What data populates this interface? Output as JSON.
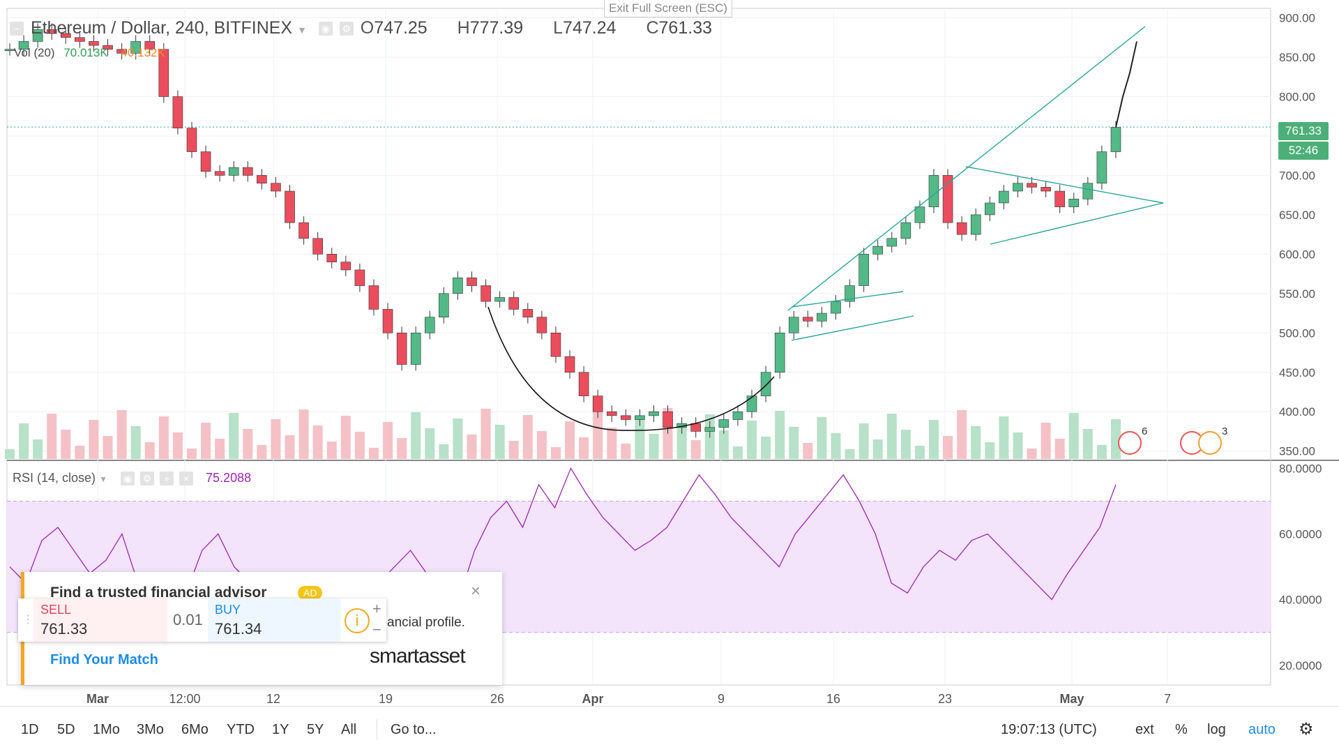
{
  "header": {
    "symbol": "Ethereum / Dollar, 240, BITFINEX",
    "open_label": "O",
    "open": "747.25",
    "high_label": "H",
    "high": "777.39",
    "low_label": "L",
    "low": "747.24",
    "close_label": "C",
    "close": "761.33",
    "exit_fullscreen": "Exit Full Screen (ESC)"
  },
  "volume_legend": {
    "label": "Vol (20)",
    "value1": "70.013K",
    "value2": "40.132K"
  },
  "rsi_legend": {
    "label": "RSI (14, close)",
    "value": "75.2088"
  },
  "price_tags": {
    "last_price": "761.33",
    "countdown": "52:46"
  },
  "colors": {
    "up": "#53b987",
    "down": "#eb4d5c",
    "rsi": "#9c27b0",
    "rsi_band": "#f3e3fb",
    "trendline": "#26a69a",
    "volume_up": "#b7e1c8",
    "volume_down": "#f4c1c7",
    "vol_ma": "#f7a35c"
  },
  "events": [
    {
      "count": "6"
    },
    {
      "count": "3"
    }
  ],
  "bottom_bar": {
    "timeframes": [
      "1D",
      "5D",
      "1Mo",
      "3Mo",
      "6Mo",
      "YTD",
      "1Y",
      "5Y",
      "All"
    ],
    "goto": "Go to...",
    "clock": "19:07:13 (UTC)",
    "ext": "ext",
    "percent": "%",
    "log": "log",
    "auto": "auto",
    "settings_icon": "gear-icon"
  },
  "ad": {
    "title": "Find a trusted financial advisor",
    "badge": "AD",
    "subtitle": "ancial profile.",
    "cta": "Find Your Match",
    "brand": "smartasset"
  },
  "trade_widget": {
    "sell_label": "SELL",
    "sell_price": "761.33",
    "lot": "0.01",
    "buy_label": "BUY",
    "buy_price": "761.34"
  },
  "chart_data": [
    {
      "type": "candlestick",
      "title": "Ethereum / Dollar, 240, BITFINEX",
      "x_ticks": [
        "Mar",
        "12:00",
        "12",
        "19",
        "26",
        "Apr",
        "9",
        "16",
        "23",
        "May",
        "7"
      ],
      "y_ticks": [
        "900.00",
        "850.00",
        "800.00",
        "750.00",
        "700.00",
        "650.00",
        "600.00",
        "550.00",
        "500.00",
        "450.00",
        "400.00",
        "350.00"
      ],
      "ylim": [
        340,
        912
      ],
      "close_path": [
        860,
        870,
        885,
        880,
        875,
        870,
        865,
        860,
        855,
        870,
        860,
        800,
        760,
        730,
        705,
        700,
        710,
        700,
        690,
        680,
        640,
        620,
        600,
        590,
        580,
        560,
        530,
        500,
        460,
        500,
        520,
        550,
        570,
        560,
        540,
        545,
        530,
        520,
        500,
        470,
        450,
        420,
        400,
        395,
        390,
        395,
        400,
        380,
        385,
        375,
        380,
        390,
        400,
        420,
        450,
        500,
        520,
        515,
        525,
        540,
        560,
        600,
        610,
        620,
        640,
        660,
        700,
        640,
        625,
        650,
        665,
        680,
        690,
        685,
        680,
        660,
        670,
        690,
        730,
        761
      ],
      "projection": [
        761,
        800,
        830,
        870
      ],
      "last": 761.33
    },
    {
      "type": "line",
      "title": "RSI (14, close)",
      "y_ticks": [
        "80.0000",
        "60.0000",
        "40.0000",
        "20.0000"
      ],
      "ylim": [
        14,
        82
      ],
      "band": [
        30,
        70
      ],
      "values": [
        50,
        45,
        58,
        62,
        55,
        48,
        52,
        60,
        45,
        35,
        28,
        42,
        55,
        60,
        50,
        45,
        38,
        30,
        25,
        22,
        18,
        35,
        30,
        45,
        50,
        55,
        48,
        42,
        40,
        55,
        65,
        70,
        62,
        75,
        68,
        80,
        72,
        65,
        60,
        55,
        58,
        62,
        70,
        78,
        72,
        65,
        60,
        55,
        50,
        60,
        66,
        72,
        78,
        70,
        60,
        45,
        42,
        50,
        55,
        52,
        58,
        60,
        55,
        50,
        45,
        40,
        48,
        55,
        62,
        75
      ],
      "last": 75.2088
    }
  ]
}
